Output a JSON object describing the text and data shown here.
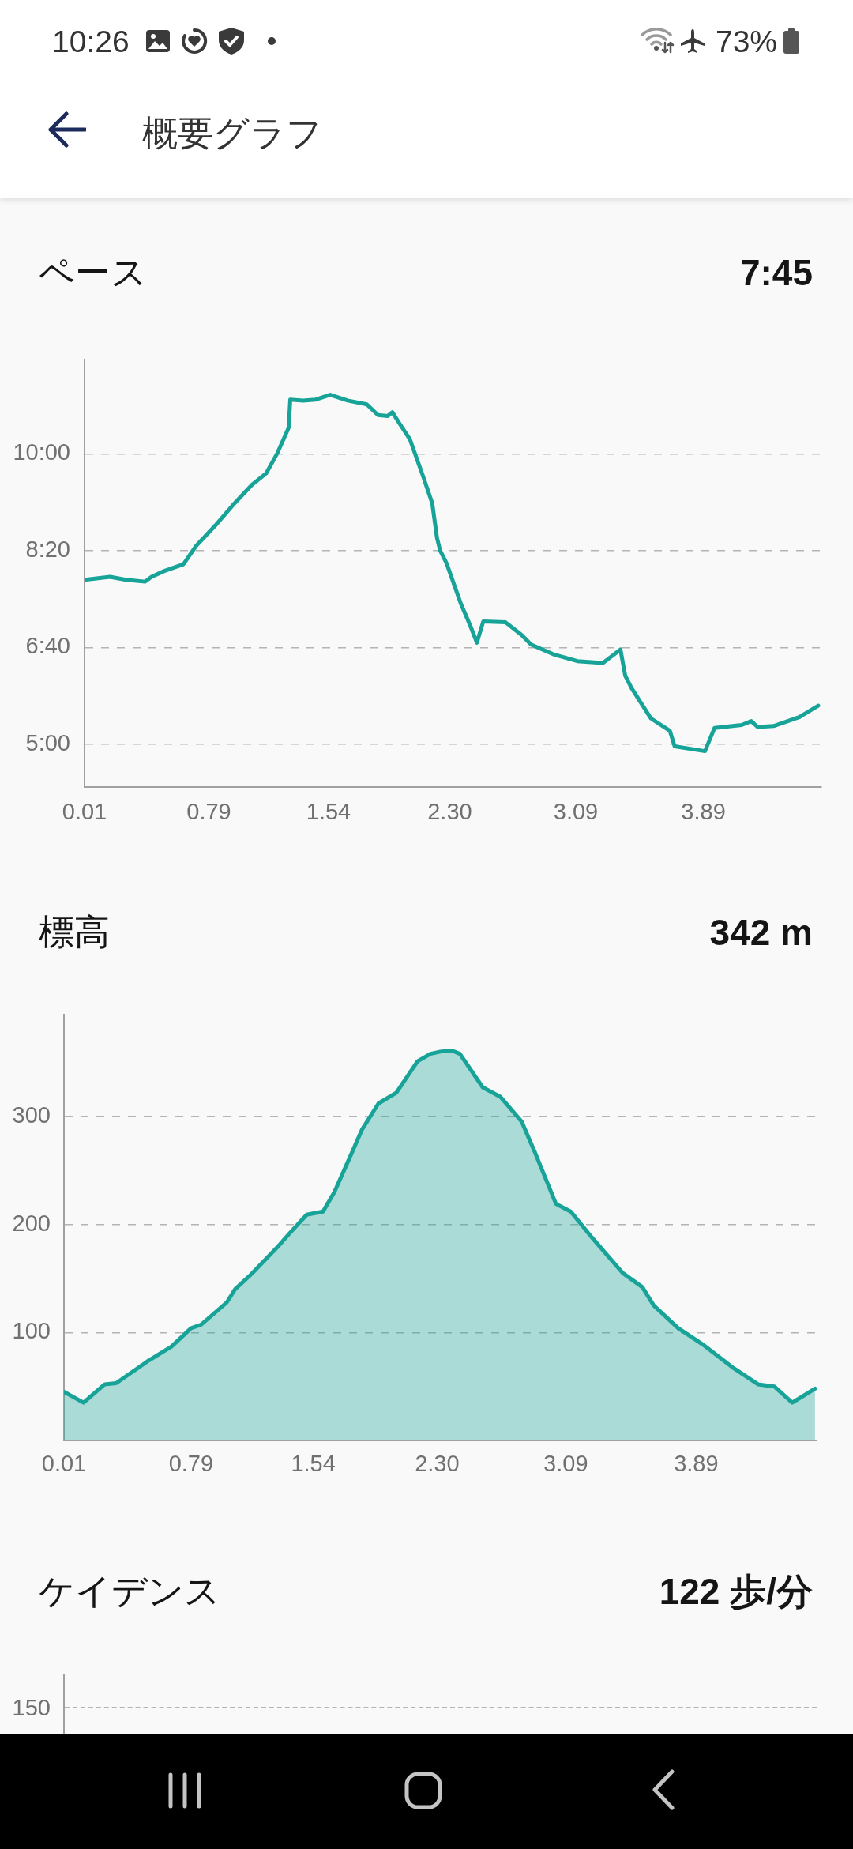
{
  "chart_data": [
    {
      "type": "other",
      "title": "概要グラフ",
      "annotations": [
        "10:26",
        "73%"
      ]
    },
    {
      "type": "line",
      "title": "ペース",
      "subtitle": "7:45",
      "color": "#17a398",
      "x": [
        0.01,
        0.17,
        0.27,
        0.39,
        0.43,
        0.51,
        0.63,
        0.71,
        0.83,
        0.94,
        1.06,
        1.15,
        1.22,
        1.29,
        1.3,
        1.38,
        1.46,
        1.55,
        1.66,
        1.78,
        1.85,
        1.91,
        1.94,
        1.99,
        2.05,
        2.13,
        2.19,
        2.22,
        2.24,
        2.28,
        2.37,
        2.43,
        2.47,
        2.51,
        2.65,
        2.75,
        2.81,
        2.95,
        3.1,
        3.26,
        3.37,
        3.4,
        3.44,
        3.56,
        3.68,
        3.71,
        3.9,
        3.96,
        4.13,
        4.19,
        4.23,
        4.33,
        4.49,
        4.61
      ],
      "values": [
        470,
        473,
        470,
        468,
        473,
        479,
        486,
        505,
        526,
        547,
        568,
        580,
        601,
        627,
        656,
        655,
        656,
        661,
        655,
        651,
        640,
        639,
        643,
        630,
        615,
        578,
        549,
        513,
        500,
        487,
        445,
        422,
        405,
        427,
        426,
        413,
        403,
        393,
        386,
        384,
        398,
        371,
        358,
        327,
        314,
        298,
        293,
        317,
        320,
        324,
        318,
        319,
        328,
        340
      ],
      "xlim": [
        0.01,
        4.63
      ],
      "xticks": [
        0.01,
        0.79,
        1.54,
        {
          "value": 2.3,
          "label": "2.30"
        },
        3.09,
        3.89
      ],
      "ylim": [
        256,
        697
      ],
      "yticks": [
        {
          "value": 300,
          "label": "5:00"
        },
        {
          "value": 400,
          "label": "6:40"
        },
        {
          "value": 500,
          "label": "8:20"
        },
        {
          "value": 600,
          "label": "10:00"
        }
      ],
      "grid": "y"
    },
    {
      "type": "area",
      "title": "標高",
      "subtitle": "342 m",
      "color": "#17a398",
      "x": [
        0.01,
        0.13,
        0.26,
        0.33,
        0.52,
        0.67,
        0.79,
        0.85,
        1.01,
        1.06,
        1.16,
        1.32,
        1.39,
        1.5,
        1.6,
        1.67,
        1.77,
        1.84,
        1.94,
        2.05,
        2.18,
        2.26,
        2.32,
        2.39,
        2.44,
        2.58,
        2.69,
        2.82,
        2.9,
        3.03,
        3.12,
        3.25,
        3.44,
        3.56,
        3.63,
        3.78,
        3.93,
        4.12,
        4.27,
        4.37,
        4.48,
        4.62
      ],
      "values": [
        45,
        35,
        52,
        53,
        73,
        87,
        104,
        107,
        128,
        140,
        154,
        179,
        191,
        209,
        212,
        230,
        264,
        288,
        312,
        322,
        351,
        358,
        360,
        361,
        358,
        327,
        318,
        295,
        267,
        219,
        212,
        188,
        155,
        142,
        125,
        104,
        89,
        67,
        52,
        50,
        35,
        48
      ],
      "xlim": [
        0.01,
        4.63
      ],
      "xticks": [
        0.01,
        0.79,
        1.54,
        {
          "value": 2.3,
          "label": "2.30"
        },
        3.09,
        3.89
      ],
      "ylim": [
        0,
        394
      ],
      "yticks": [
        100,
        200,
        300
      ],
      "grid": "y"
    },
    {
      "type": "other",
      "title": "ケイデンス",
      "subtitle": "122 歩/分",
      "annotations": [
        "150"
      ]
    }
  ]
}
